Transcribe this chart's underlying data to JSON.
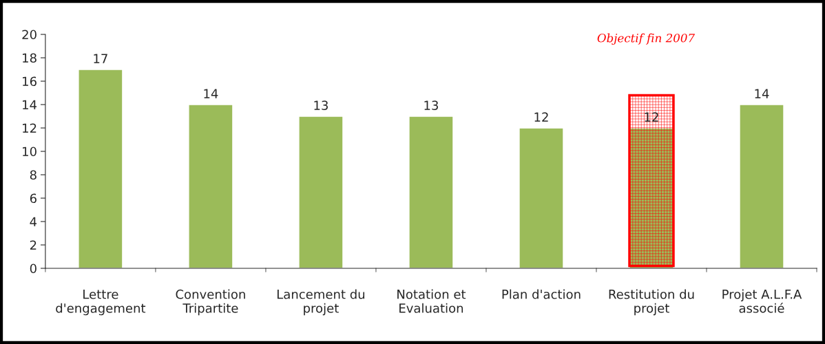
{
  "chart_data": {
    "type": "bar",
    "categories": [
      "Lettre\nd'engagement",
      "Convention\nTripartite",
      "Lancement du\nprojet",
      "Notation et\nEvaluation",
      "Plan d'action",
      "Restitution du\nprojet",
      "Projet A.L.F.A\nassocié"
    ],
    "values": [
      17,
      14,
      13,
      13,
      12,
      12,
      14
    ],
    "color": "#9bbb59",
    "ylim": [
      0,
      20
    ],
    "yticks": [
      0,
      2,
      4,
      6,
      8,
      10,
      12,
      14,
      16,
      18,
      20
    ],
    "data_labels": true,
    "grid": false,
    "legend": false,
    "annotations": [
      "Objectif fin 2007"
    ]
  }
}
